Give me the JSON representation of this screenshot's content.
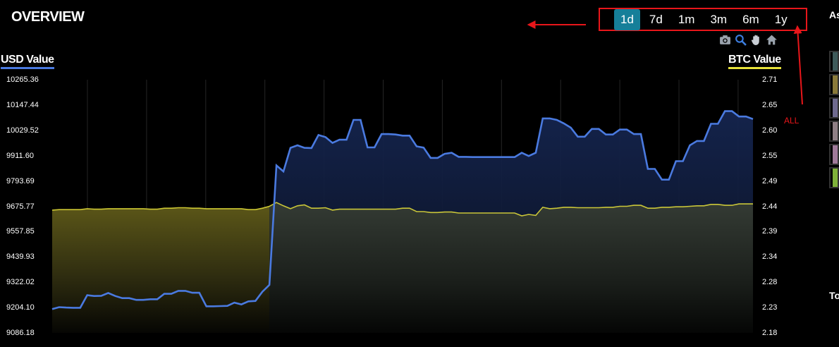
{
  "header": {
    "title": "OVERVIEW"
  },
  "range_tabs": [
    {
      "label": "1d",
      "active": true
    },
    {
      "label": "7d",
      "active": false
    },
    {
      "label": "1m",
      "active": false
    },
    {
      "label": "3m",
      "active": false
    },
    {
      "label": "6m",
      "active": false
    },
    {
      "label": "1y",
      "active": false
    }
  ],
  "toolbar": {
    "icons": [
      "camera-icon",
      "zoom-icon",
      "pan-hand-icon",
      "home-icon"
    ]
  },
  "annotation": {
    "label": "ALL",
    "color": "#e8161a"
  },
  "side_panel": {
    "heading_fragment": "As",
    "footer_fragment": "To",
    "swatches": [
      "#3e5a5a",
      "#8a7a3a",
      "#6f6a8f",
      "#8f7f85",
      "#a07a9a",
      "#7fb23a"
    ]
  },
  "colors": {
    "usd_line": "#4a7ae0",
    "btc_line": "#e8e23a",
    "background": "#000000"
  },
  "chart_data": {
    "type": "line",
    "left_axis": {
      "label": "USD Value",
      "ticks": [
        "10265.36",
        "10147.44",
        "10029.52",
        "9911.60",
        "9793.69",
        "9675.77",
        "9557.85",
        "9439.93",
        "9322.02",
        "9204.10",
        "9086.18"
      ],
      "range": [
        9086.18,
        10265.36
      ]
    },
    "right_axis": {
      "label": "BTC Value",
      "ticks": [
        "2.71",
        "2.65",
        "2.60",
        "2.55",
        "2.49",
        "2.44",
        "2.39",
        "2.34",
        "2.28",
        "2.23",
        "2.18"
      ],
      "range": [
        2.18,
        2.71
      ]
    },
    "grid": "vertical",
    "series": [
      {
        "name": "USD Value",
        "axis": "left",
        "color": "#4a7ae0",
        "values": [
          9197,
          9206,
          9204,
          9203,
          9203,
          9262,
          9258,
          9259,
          9272,
          9258,
          9248,
          9248,
          9240,
          9240,
          9243,
          9243,
          9268,
          9268,
          9282,
          9282,
          9273,
          9273,
          9210,
          9210,
          9211,
          9212,
          9227,
          9219,
          9233,
          9235,
          9278,
          9310,
          9866,
          9838,
          9948,
          9960,
          9948,
          9947,
          10008,
          9998,
          9971,
          9986,
          9986,
          10078,
          10078,
          9950,
          9950,
          10012,
          10012,
          10010,
          10005,
          10005,
          9955,
          9949,
          9901,
          9901,
          9920,
          9925,
          9906,
          9906,
          9905,
          9905,
          9905,
          9905,
          9905,
          9905,
          9905,
          9925,
          9910,
          9925,
          10085,
          10085,
          10078,
          10062,
          10042,
          10000,
          10000,
          10036,
          10036,
          10010,
          10010,
          10033,
          10033,
          10012,
          10012,
          9850,
          9850,
          9800,
          9800,
          9886,
          9886,
          9960,
          9980,
          9980,
          10060,
          10060,
          10119,
          10119,
          10094,
          10094,
          10082
        ]
      },
      {
        "name": "BTC Value",
        "axis": "right",
        "color": "#e8e23a",
        "values": [
          2.437,
          2.438,
          2.438,
          2.438,
          2.438,
          2.44,
          2.439,
          2.439,
          2.44,
          2.44,
          2.44,
          2.44,
          2.44,
          2.44,
          2.439,
          2.439,
          2.441,
          2.441,
          2.442,
          2.442,
          2.441,
          2.441,
          2.44,
          2.44,
          2.44,
          2.44,
          2.44,
          2.44,
          2.438,
          2.438,
          2.441,
          2.445,
          2.453,
          2.446,
          2.44,
          2.446,
          2.448,
          2.441,
          2.441,
          2.442,
          2.437,
          2.439,
          2.439,
          2.439,
          2.439,
          2.439,
          2.439,
          2.439,
          2.439,
          2.439,
          2.441,
          2.441,
          2.434,
          2.434,
          2.432,
          2.432,
          2.433,
          2.433,
          2.431,
          2.431,
          2.431,
          2.431,
          2.431,
          2.431,
          2.431,
          2.431,
          2.431,
          2.425,
          2.428,
          2.426,
          2.443,
          2.44,
          2.441,
          2.443,
          2.443,
          2.442,
          2.442,
          2.442,
          2.442,
          2.443,
          2.443,
          2.445,
          2.445,
          2.447,
          2.447,
          2.441,
          2.441,
          2.443,
          2.443,
          2.444,
          2.444,
          2.445,
          2.446,
          2.446,
          2.449,
          2.449,
          2.447,
          2.447,
          2.45,
          2.45,
          2.45
        ]
      }
    ]
  }
}
